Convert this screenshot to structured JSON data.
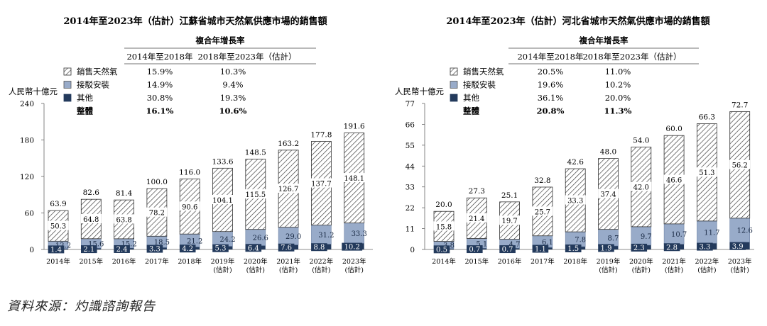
{
  "colors": {
    "cat1_fill": "#ffffff",
    "cat1_hatch": "#333333",
    "cat2": "#98abc9",
    "cat3": "#233a5c",
    "axis": "#666666"
  },
  "source": "資料來源：灼識諮詢報告",
  "chart_data": [
    {
      "type": "bar",
      "stacked": true,
      "title": "2014年至2023年（估計）江蘇省城市天然氣供應市場的銷售額",
      "ylabel": "人民幣十億元",
      "ylim": [
        0,
        240
      ],
      "yticks": [
        "0",
        "60",
        "120",
        "180",
        "240"
      ],
      "categories": [
        "2014年",
        "2015年",
        "2016年",
        "2017年",
        "2018年",
        "2019年",
        "2020年",
        "2021年",
        "2022年",
        "2023年"
      ],
      "sub_labels": [
        "",
        "",
        "",
        "",
        "",
        "(估計)",
        "(估計)",
        "(估計)",
        "(估計)",
        "(估計)"
      ],
      "series": [
        {
          "name": "其他",
          "values": [
            1.4,
            2.1,
            2.4,
            3.3,
            4.2,
            5.3,
            6.4,
            7.6,
            8.8,
            10.2
          ]
        },
        {
          "name": "接駁安裝",
          "values": [
            12.2,
            15.6,
            15.2,
            18.5,
            21.2,
            24.2,
            26.6,
            29.0,
            31.2,
            33.3
          ]
        },
        {
          "name": "銷售天然氣",
          "values": [
            50.3,
            64.8,
            63.8,
            78.2,
            90.6,
            104.1,
            115.5,
            126.7,
            137.7,
            148.1
          ]
        }
      ],
      "totals": [
        "63.9",
        "82.6",
        "81.4",
        "100.0",
        "116.0",
        "133.6",
        "148.5",
        "163.2",
        "177.8",
        "191.6"
      ],
      "seg_labels": {
        "cat1": [
          "50.3",
          "64.8",
          "63.8",
          "78.2",
          "90.6",
          "104.1",
          "115.5",
          "126.7",
          "137.7",
          "148.1"
        ],
        "cat2": [
          "12.2",
          "15.6",
          "15.2",
          "18.5",
          "21.2",
          "24.2",
          "26.6",
          "29.0",
          "31.2",
          "33.3"
        ],
        "cat3": [
          "1.4",
          "2.1",
          "2.4",
          "3.3",
          "4.2",
          "5.3",
          "6.4",
          "7.6",
          "8.8",
          "10.2"
        ]
      },
      "cagr_table": {
        "header": "複合年增長率",
        "col1": "2014年至2018年",
        "col2": "2018年至2023年（估計）",
        "rows": [
          {
            "key": "cat1",
            "label": "銷售天然氣",
            "v1": "15.9%",
            "v2": "10.3%"
          },
          {
            "key": "cat2",
            "label": "接駁安裝",
            "v1": "14.9%",
            "v2": "9.4%"
          },
          {
            "key": "cat3",
            "label": "其他",
            "v1": "30.8%",
            "v2": "19.3%"
          },
          {
            "key": "total",
            "label": "整體",
            "v1": "16.1%",
            "v2": "10.6%"
          }
        ]
      }
    },
    {
      "type": "bar",
      "stacked": true,
      "title": "2014年至2023年（估計）河北省城市天然氣供應市場的銷售額",
      "ylabel": "人民幣十億元",
      "ylim": [
        0,
        77
      ],
      "yticks": [
        "0",
        "11",
        "22",
        "33",
        "44",
        "55",
        "66",
        "77"
      ],
      "categories": [
        "2014年",
        "2015年",
        "2016年",
        "2017年",
        "2018年",
        "2019年",
        "2020年",
        "2021年",
        "2022年",
        "2023年"
      ],
      "sub_labels": [
        "",
        "",
        "",
        "",
        "",
        "(估計)",
        "(估計)",
        "(估計)",
        "(估計)",
        "(估計)"
      ],
      "series": [
        {
          "name": "其他",
          "values": [
            0.5,
            0.7,
            0.7,
            1.1,
            1.5,
            1.9,
            2.3,
            2.8,
            3.3,
            3.9
          ]
        },
        {
          "name": "接駁安裝",
          "values": [
            3.8,
            5.1,
            4.7,
            6.1,
            7.8,
            8.7,
            9.7,
            10.7,
            11.7,
            12.6
          ]
        },
        {
          "name": "銷售天然氣",
          "values": [
            15.8,
            21.4,
            19.7,
            25.7,
            33.3,
            37.4,
            42.0,
            46.6,
            51.3,
            56.2
          ]
        }
      ],
      "totals": [
        "20.0",
        "27.3",
        "25.1",
        "32.8",
        "42.6",
        "48.0",
        "54.0",
        "60.0",
        "66.3",
        "72.7"
      ],
      "seg_labels": {
        "cat1": [
          "15.8",
          "21.4",
          "19.7",
          "25.7",
          "33.3",
          "37.4",
          "42.0",
          "46.6",
          "51.3",
          "56.2"
        ],
        "cat2": [
          "3.8",
          "5.1",
          "4.7",
          "6.1",
          "7.8",
          "8.7",
          "9.7",
          "10.7",
          "11.7",
          "12.6"
        ],
        "cat3": [
          "0.5",
          "0.7",
          "0.7",
          "1.1",
          "1.5",
          "1.9",
          "2.3",
          "2.8",
          "3.3",
          "3.9"
        ]
      },
      "cagr_table": {
        "header": "複合年增長率",
        "col1": "2014年至2018年",
        "col2": "2018年至2023年（估計）",
        "rows": [
          {
            "key": "cat1",
            "label": "銷售天然氣",
            "v1": "20.5%",
            "v2": "11.0%"
          },
          {
            "key": "cat2",
            "label": "接駁安裝",
            "v1": "19.6%",
            "v2": "10.2%"
          },
          {
            "key": "cat3",
            "label": "其他",
            "v1": "36.1%",
            "v2": "20.0%"
          },
          {
            "key": "total",
            "label": "整體",
            "v1": "20.8%",
            "v2": "11.3%"
          }
        ]
      }
    }
  ]
}
